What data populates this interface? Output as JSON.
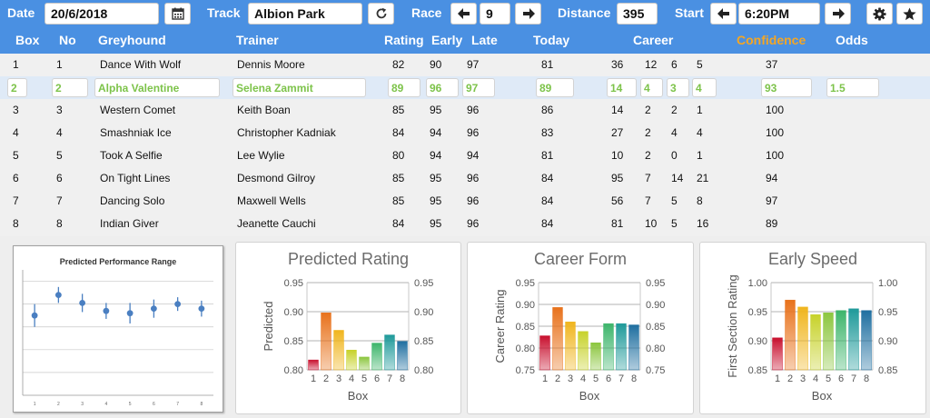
{
  "topbar": {
    "date_label": "Date",
    "date_value": "20/6/2018",
    "track_label": "Track",
    "track_value": "Albion Park",
    "race_label": "Race",
    "race_value": "9",
    "distance_label": "Distance",
    "distance_value": "395",
    "start_label": "Start",
    "start_value": "6:20PM",
    "icons": [
      "calendar-icon",
      "refresh-icon",
      "arrow-left-icon",
      "arrow-right-icon",
      "gear-icon",
      "star-icon"
    ]
  },
  "table": {
    "headers": {
      "box": "Box",
      "no": "No",
      "greyhound": "Greyhound",
      "trainer": "Trainer",
      "rating": "Rating",
      "early": "Early",
      "late": "Late",
      "today": "Today",
      "career": "Career",
      "confidence": "Confidence",
      "odds": "Odds"
    },
    "rows": [
      {
        "box": "1",
        "no": "1",
        "greyhound": "Dance With Wolf",
        "trainer": "Dennis Moore",
        "rating": "82",
        "early": "90",
        "late": "97",
        "today": "81",
        "c1": "36",
        "c2": "12",
        "c3": "6",
        "c4": "5",
        "confidence": "37",
        "odds": ""
      },
      {
        "box": "2",
        "no": "2",
        "greyhound": "Alpha Valentine",
        "trainer": "Selena Zammit",
        "rating": "89",
        "early": "96",
        "late": "97",
        "today": "89",
        "c1": "14",
        "c2": "4",
        "c3": "3",
        "c4": "4",
        "confidence": "93",
        "odds": "1.5"
      },
      {
        "box": "3",
        "no": "3",
        "greyhound": "Western Comet",
        "trainer": "Keith Boan",
        "rating": "85",
        "early": "95",
        "late": "96",
        "today": "86",
        "c1": "14",
        "c2": "2",
        "c3": "2",
        "c4": "1",
        "confidence": "100",
        "odds": ""
      },
      {
        "box": "4",
        "no": "4",
        "greyhound": "Smashniak Ice",
        "trainer": "Christopher Kadniak",
        "rating": "84",
        "early": "94",
        "late": "96",
        "today": "83",
        "c1": "27",
        "c2": "2",
        "c3": "4",
        "c4": "4",
        "confidence": "100",
        "odds": ""
      },
      {
        "box": "5",
        "no": "5",
        "greyhound": "Took A Selfie",
        "trainer": "Lee Wylie",
        "rating": "80",
        "early": "94",
        "late": "94",
        "today": "81",
        "c1": "10",
        "c2": "2",
        "c3": "0",
        "c4": "1",
        "confidence": "100",
        "odds": ""
      },
      {
        "box": "6",
        "no": "6",
        "greyhound": "On Tight Lines",
        "trainer": "Desmond Gilroy",
        "rating": "85",
        "early": "95",
        "late": "96",
        "today": "84",
        "c1": "95",
        "c2": "7",
        "c3": "14",
        "c4": "21",
        "confidence": "94",
        "odds": ""
      },
      {
        "box": "7",
        "no": "7",
        "greyhound": "Dancing Solo",
        "trainer": "Maxwell Wells",
        "rating": "85",
        "early": "95",
        "late": "96",
        "today": "84",
        "c1": "56",
        "c2": "7",
        "c3": "5",
        "c4": "8",
        "confidence": "97",
        "odds": ""
      },
      {
        "box": "8",
        "no": "8",
        "greyhound": "Indian Giver",
        "trainer": "Jeanette Cauchi",
        "rating": "84",
        "early": "95",
        "late": "96",
        "today": "84",
        "c1": "81",
        "c2": "10",
        "c3": "5",
        "c4": "16",
        "confidence": "89",
        "odds": ""
      }
    ],
    "selected_row": 1
  },
  "chart_data": [
    {
      "type": "scatter",
      "title": "Predicted Performance Range",
      "x": [
        1,
        2,
        3,
        4,
        5,
        6,
        7,
        8
      ],
      "y": [
        0.7,
        0.88,
        0.81,
        0.74,
        0.72,
        0.76,
        0.8,
        0.76
      ],
      "error": [
        0.1,
        0.07,
        0.08,
        0.07,
        0.09,
        0.08,
        0.06,
        0.07
      ],
      "ylim": [
        0,
        1.1
      ],
      "xlabel": "",
      "ylabel": "",
      "grid": true
    },
    {
      "type": "bar",
      "title": "Predicted Rating",
      "categories": [
        "1",
        "2",
        "3",
        "4",
        "5",
        "6",
        "7",
        "8"
      ],
      "values": [
        0.817,
        0.898,
        0.868,
        0.834,
        0.822,
        0.846,
        0.86,
        0.849
      ],
      "ylim": [
        0.8,
        0.95
      ],
      "yticks": [
        "0.80",
        "0.85",
        "0.90",
        "0.95"
      ],
      "xlabel": "Box",
      "ylabel": "Predicted",
      "grid": true
    },
    {
      "type": "bar",
      "title": "Career Form",
      "categories": [
        "1",
        "2",
        "3",
        "4",
        "5",
        "6",
        "7",
        "8"
      ],
      "values": [
        0.828,
        0.893,
        0.86,
        0.838,
        0.812,
        0.856,
        0.856,
        0.853
      ],
      "ylim": [
        0.75,
        0.95
      ],
      "yticks": [
        "0.75",
        "0.80",
        "0.85",
        "0.90",
        "0.95"
      ],
      "xlabel": "Box",
      "ylabel": "Career Rating",
      "grid": true
    },
    {
      "type": "bar",
      "title": "Early Speed",
      "categories": [
        "1",
        "2",
        "3",
        "4",
        "5",
        "6",
        "7",
        "8"
      ],
      "values": [
        0.905,
        0.97,
        0.958,
        0.945,
        0.948,
        0.952,
        0.955,
        0.952
      ],
      "ylim": [
        0.85,
        1.0
      ],
      "yticks": [
        "0.85",
        "0.90",
        "0.95",
        "1.00"
      ],
      "xlabel": "Box",
      "ylabel": "First Section Rating",
      "grid": true
    }
  ],
  "colors": {
    "header_blue": "#4a90e2",
    "confidence_orange": "#f5a623",
    "highlight_green": "#7dc34a",
    "bar_colors": [
      "#c8102e",
      "#e8721c",
      "#f0b51e",
      "#c7d22a",
      "#8cc63f",
      "#3db56b",
      "#1f9a9a",
      "#1f6fa0"
    ]
  }
}
